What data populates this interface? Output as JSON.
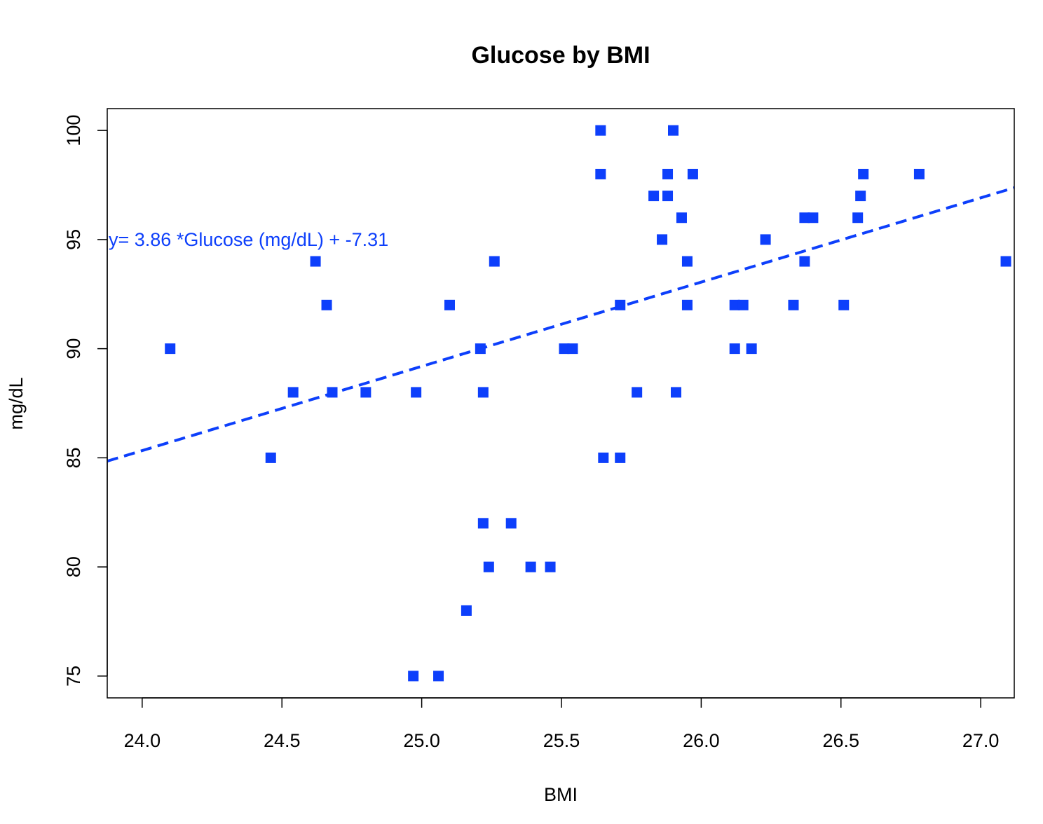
{
  "chart_data": {
    "type": "scatter",
    "title": "Glucose by BMI",
    "xlabel": "BMI",
    "ylabel": "mg/dL",
    "xlim": [
      23.875,
      27.12
    ],
    "ylim": [
      74.0,
      101.0
    ],
    "xticks": [
      24.0,
      24.5,
      25.0,
      25.5,
      26.0,
      26.5,
      27.0
    ],
    "xtick_labels": [
      "24.0",
      "24.5",
      "25.0",
      "25.5",
      "26.0",
      "26.5",
      "27.0"
    ],
    "yticks": [
      75,
      80,
      85,
      90,
      95,
      100
    ],
    "ytick_labels": [
      "75",
      "80",
      "85",
      "90",
      "95",
      "100"
    ],
    "grid": false,
    "marker": "square",
    "color": "#0d3ffb",
    "points": [
      {
        "x": 24.1,
        "y": 90
      },
      {
        "x": 24.46,
        "y": 85
      },
      {
        "x": 24.54,
        "y": 88
      },
      {
        "x": 24.62,
        "y": 94
      },
      {
        "x": 24.66,
        "y": 92
      },
      {
        "x": 24.68,
        "y": 88
      },
      {
        "x": 24.8,
        "y": 88
      },
      {
        "x": 24.98,
        "y": 88
      },
      {
        "x": 24.97,
        "y": 75
      },
      {
        "x": 25.06,
        "y": 75
      },
      {
        "x": 25.1,
        "y": 92
      },
      {
        "x": 25.16,
        "y": 78
      },
      {
        "x": 25.21,
        "y": 90
      },
      {
        "x": 25.22,
        "y": 88
      },
      {
        "x": 25.22,
        "y": 82
      },
      {
        "x": 25.24,
        "y": 80
      },
      {
        "x": 25.26,
        "y": 94
      },
      {
        "x": 25.32,
        "y": 82
      },
      {
        "x": 25.39,
        "y": 80
      },
      {
        "x": 25.46,
        "y": 80
      },
      {
        "x": 25.51,
        "y": 90
      },
      {
        "x": 25.54,
        "y": 90
      },
      {
        "x": 25.64,
        "y": 100
      },
      {
        "x": 25.64,
        "y": 98
      },
      {
        "x": 25.65,
        "y": 85
      },
      {
        "x": 25.71,
        "y": 85
      },
      {
        "x": 25.71,
        "y": 92
      },
      {
        "x": 25.77,
        "y": 88
      },
      {
        "x": 25.83,
        "y": 97
      },
      {
        "x": 25.86,
        "y": 95
      },
      {
        "x": 25.88,
        "y": 98
      },
      {
        "x": 25.88,
        "y": 97
      },
      {
        "x": 25.9,
        "y": 100
      },
      {
        "x": 25.91,
        "y": 88
      },
      {
        "x": 25.93,
        "y": 96
      },
      {
        "x": 25.95,
        "y": 94
      },
      {
        "x": 25.95,
        "y": 92
      },
      {
        "x": 25.97,
        "y": 98
      },
      {
        "x": 26.12,
        "y": 92
      },
      {
        "x": 26.12,
        "y": 90
      },
      {
        "x": 26.15,
        "y": 92
      },
      {
        "x": 26.18,
        "y": 90
      },
      {
        "x": 26.23,
        "y": 95
      },
      {
        "x": 26.33,
        "y": 92
      },
      {
        "x": 26.37,
        "y": 96
      },
      {
        "x": 26.37,
        "y": 94
      },
      {
        "x": 26.4,
        "y": 96
      },
      {
        "x": 26.51,
        "y": 92
      },
      {
        "x": 26.56,
        "y": 96
      },
      {
        "x": 26.57,
        "y": 97
      },
      {
        "x": 26.58,
        "y": 98
      },
      {
        "x": 26.78,
        "y": 98
      },
      {
        "x": 27.09,
        "y": 94
      }
    ],
    "fit_line": {
      "slope": 3.86,
      "intercept": -7.31,
      "style": "dashed"
    },
    "annotation": "y=  3.86 *Glucose (mg/dL) +  -7.31"
  }
}
